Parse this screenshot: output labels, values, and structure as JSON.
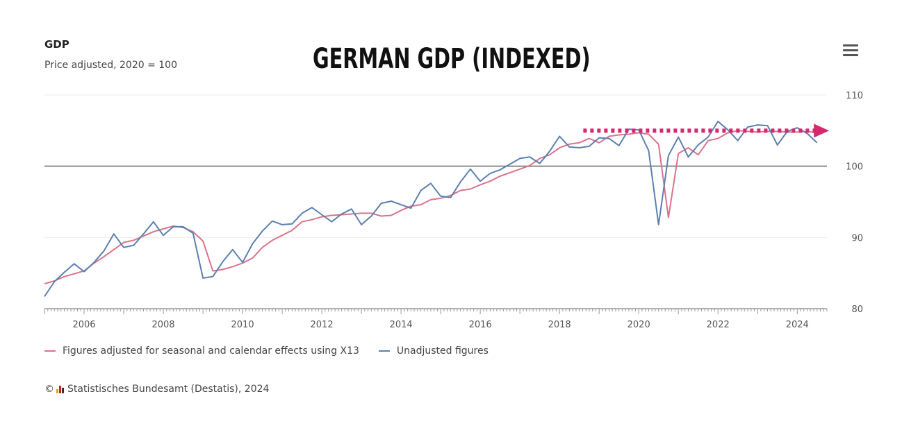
{
  "header": {
    "chart_title": "GDP",
    "subtitle": "Price adjusted, 2020 = 100",
    "overlay_title": "GERMAN GDP (INDEXED)"
  },
  "credits": {
    "copyright_symbol": "©",
    "text": "Statistisches Bundesamt (Destatis), 2024"
  },
  "colors": {
    "adjusted": "#d9738a",
    "unadjusted": "#5b7fb0",
    "baseline": "#8a8a8a",
    "arrow": "#d6286f",
    "axis": "#9a9a9a"
  },
  "icons": {
    "menu": "hamburger-menu-icon",
    "logo": "destatis-logo-icon"
  },
  "chart_data": {
    "type": "line",
    "title": "GDP",
    "subtitle": "Price adjusted, 2020 = 100",
    "xlabel": "",
    "ylabel": "",
    "x_ticks": [
      "2006",
      "2008",
      "2010",
      "2012",
      "2014",
      "2016",
      "2018",
      "2020",
      "2022",
      "2024"
    ],
    "y_ticks": [
      80,
      90,
      100,
      110
    ],
    "xlim": [
      2005.0,
      2024.75
    ],
    "ylim": [
      80,
      110
    ],
    "reference_line": 100,
    "grid": "horizontal",
    "legend_position": "bottom-left",
    "annotation": {
      "type": "dotted-arrow",
      "from": [
        2018.6,
        105
      ],
      "to": [
        2024.7,
        105
      ]
    },
    "series": [
      {
        "name": "Figures adjusted for seasonal and calendar effects using X13",
        "start": 2005.0,
        "step": 0.25,
        "values": [
          83.5,
          83.9,
          84.5,
          84.9,
          85.3,
          86.4,
          87.3,
          88.3,
          89.3,
          89.6,
          90.2,
          90.8,
          91.2,
          91.6,
          91.4,
          90.8,
          89.5,
          85.3,
          85.5,
          85.9,
          86.4,
          87.1,
          88.6,
          89.6,
          90.3,
          91.0,
          92.2,
          92.5,
          92.9,
          93.1,
          93.2,
          93.3,
          93.4,
          93.4,
          93.0,
          93.1,
          93.8,
          94.4,
          94.6,
          95.3,
          95.5,
          95.9,
          96.6,
          96.8,
          97.4,
          97.9,
          98.6,
          99.1,
          99.6,
          100.1,
          101.1,
          101.6,
          102.6,
          103.1,
          103.3,
          103.9,
          103.3,
          104.2,
          104.4,
          104.5,
          104.7,
          104.5,
          103.1,
          92.8,
          101.8,
          102.6,
          101.6,
          103.6,
          103.9,
          104.7,
          105.0,
          104.9,
          104.8,
          104.9,
          104.9,
          104.8,
          104.8,
          104.9,
          104.7
        ]
      },
      {
        "name": "Unadjusted figures",
        "start": 2005.0,
        "step": 0.25,
        "values": [
          81.7,
          83.8,
          85.1,
          86.3,
          85.2,
          86.5,
          88.1,
          90.5,
          88.6,
          88.9,
          90.5,
          92.2,
          90.3,
          91.5,
          91.5,
          90.6,
          84.3,
          84.5,
          86.6,
          88.3,
          86.5,
          89.1,
          90.9,
          92.3,
          91.8,
          91.9,
          93.4,
          94.2,
          93.2,
          92.2,
          93.3,
          94.0,
          91.8,
          93.0,
          94.8,
          95.1,
          94.6,
          94.1,
          96.6,
          97.6,
          95.8,
          95.6,
          97.8,
          99.6,
          97.9,
          99.0,
          99.5,
          100.3,
          101.1,
          101.3,
          100.4,
          102.1,
          104.2,
          102.7,
          102.6,
          102.8,
          104.0,
          103.9,
          102.9,
          105.2,
          105.1,
          102.2,
          91.8,
          101.5,
          104.1,
          101.3,
          103.0,
          104.1,
          106.3,
          105.1,
          103.6,
          105.5,
          105.8,
          105.7,
          103.0,
          104.9,
          105.4,
          104.6,
          103.3
        ]
      }
    ]
  }
}
